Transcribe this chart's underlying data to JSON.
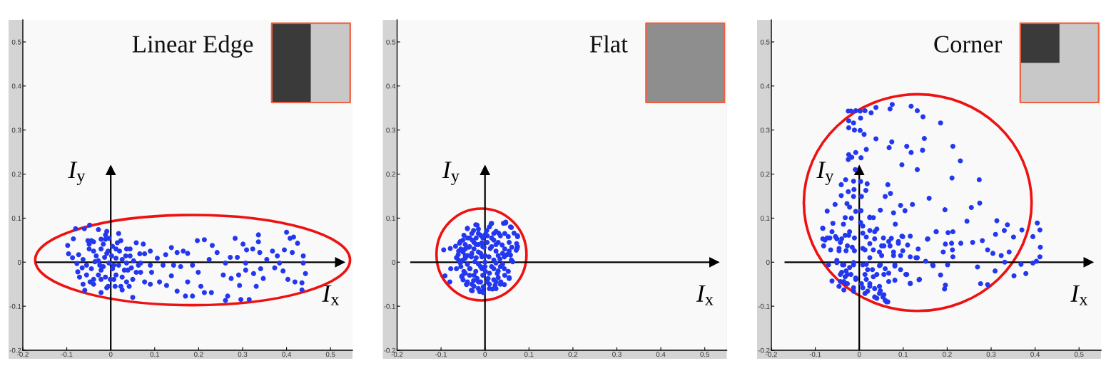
{
  "chart_data": [
    {
      "type": "scatter",
      "title": "Linear Edge",
      "xlim": [
        -0.2,
        0.55
      ],
      "ylim": [
        -0.2,
        0.55
      ],
      "xticks": [
        -0.2,
        -0.1,
        0,
        0.1,
        0.2,
        0.3,
        0.4,
        0.5
      ],
      "yticks": [
        -0.2,
        -0.1,
        0,
        0.1,
        0.2,
        0.3,
        0.4,
        0.5
      ],
      "marker": "circle",
      "ref_lines": [
        {
          "axis": "y",
          "value": 0,
          "label": "I$_{x}$",
          "color": "#000000"
        },
        {
          "axis": "x",
          "value": 0,
          "label": "I$_{y}$",
          "color": "#000000"
        }
      ],
      "series": [
        {
          "color": "#2337f0",
          "x": [
            -0.098,
            -0.085,
            -0.08,
            -0.096,
            -0.087,
            -0.077,
            -0.075,
            -0.071,
            -0.063,
            -0.059,
            -0.06,
            -0.048,
            -0.052,
            -0.044,
            -0.049,
            -0.055,
            -0.044,
            -0.039,
            -0.047,
            -0.028,
            -0.009,
            -0.022,
            -0.014,
            -0.028,
            -0.022,
            -0.012,
            -0.022,
            -0.009,
            -0.004,
            0.004,
            0.002,
            0.007,
            0.012,
            0.01,
            0.018,
            0.023,
            0.02,
            0.026,
            0.031,
            0.026,
            0.036,
            0.044,
            0.05,
            0.05,
            0.058,
            0.063,
            0.074,
            0.077,
            0.068,
            0.077,
            0.09,
            0.09,
            0.093,
            0.09,
            0.106,
            0.111,
            0.119,
            0.125,
            0.127,
            0.138,
            0.138,
            0.143,
            0.151,
            0.151,
            0.159,
            0.165,
            0.17,
            0.175,
            0.175,
            0.186,
            0.186,
            0.197,
            0.199,
            0.205,
            0.213,
            0.213,
            0.224,
            0.229,
            0.231,
            0.242,
            0.256,
            0.261,
            0.266,
            0.272,
            0.274,
            0.283,
            0.288,
            0.291,
            0.293,
            0.301,
            0.307,
            0.307,
            0.309,
            0.315,
            0.323,
            0.325,
            0.331,
            0.336,
            0.336,
            0.339,
            0.341,
            0.347,
            0.355,
            0.368,
            0.373,
            0.379,
            0.384,
            0.392,
            0.395,
            0.4,
            0.403,
            0.408,
            0.413,
            0.416,
            0.419,
            0.425,
            0.435,
            0.438,
            0.438,
            0.443,
            0.435,
            0.261,
            0.296,
            -0.039,
            -0.036,
            -0.017,
            -0.006,
            0.012,
            0.036,
            0.047,
            -0.028,
            -0.001,
            0.042,
            0.015,
            -0.012,
            -0.049,
            -0.039,
            -0.033,
            -0.025,
            -0.017,
            -0.009,
            -0.004,
            0.004,
            0.012,
            0.018,
            0.026,
            0.034,
            0.039,
            0.044,
            0.052,
            0.058,
            0.066,
            0.068,
            -0.022,
            -0.006,
            0.007,
            -0.055,
            -0.065,
            -0.063,
            -0.073,
            -0.039,
            0.023,
            0.036,
            -0.012,
            -0.022
          ],
          "values": [
            0.038,
            0.053,
            0.076,
            0.019,
            0.01,
            -0.003,
            -0.022,
            -0.034,
            -0.05,
            -0.064,
            0.076,
            0.084,
            0.049,
            0.049,
            0.03,
            -0.007,
            -0.015,
            -0.039,
            -0.045,
            0.074,
            0.07,
            0.03,
            0.011,
            0.003,
            -0.018,
            -0.034,
            -0.069,
            -0.058,
            0.054,
            0.036,
            0.014,
            -0.007,
            -0.029,
            -0.055,
            0.065,
            0.049,
            0.025,
            0.006,
            -0.018,
            -0.063,
            0.03,
            0.014,
            -0.039,
            -0.08,
            0.044,
            -0.007,
            0.041,
            0.019,
            -0.023,
            -0.045,
            0.025,
            -0.007,
            -0.023,
            -0.05,
            0.009,
            -0.045,
            -0.007,
            0.017,
            -0.053,
            0.033,
            -0.031,
            -0.007,
            0.022,
            -0.066,
            -0.01,
            0.025,
            -0.077,
            0.02,
            -0.045,
            -0.007,
            -0.077,
            0.049,
            -0.023,
            -0.055,
            0.051,
            -0.069,
            0.006,
            -0.069,
            0.038,
            0.022,
            -0.029,
            -0.002,
            -0.077,
            0.011,
            -0.037,
            0.054,
            0.011,
            -0.029,
            -0.053,
            0.041,
            -0.002,
            -0.018,
            0.028,
            -0.085,
            0.03,
            -0.026,
            -0.055,
            0.062,
            0.046,
            0.022,
            -0.015,
            -0.037,
            0.006,
            0.025,
            -0.013,
            0.014,
            -0.002,
            -0.02,
            0.028,
            0.068,
            -0.039,
            0.054,
            0.022,
            0.057,
            -0.045,
            0.043,
            -0.063,
            0.014,
            -0.002,
            -0.026,
            -0.047,
            -0.087,
            -0.085,
            0.046,
            0.001,
            -0.01,
            0.025,
            0.009,
            -0.002,
            -0.013,
            -0.029,
            -0.039,
            -0.055,
            0.044,
            0.052,
            0.041,
            0.025,
            0.014,
            -0.007,
            0.041,
            0.02,
            -0.002,
            -0.015,
            0.03,
            -0.007,
            -0.034,
            0.014,
            -0.018,
            0.03,
            0.003,
            -0.023,
            0.019,
            -0.002,
            -0.039,
            -0.055,
            -0.039,
            -0.029,
            -0.013,
            0.006,
            0.017,
            -0.05,
            -0.055,
            -0.045,
            0.062,
            0.052
          ]
        }
      ]
    },
    {
      "type": "scatter",
      "title": "Flat",
      "xlim": [
        -0.2,
        0.55
      ],
      "ylim": [
        -0.2,
        0.55
      ],
      "xticks": [
        -0.2,
        -0.1,
        0,
        0.1,
        0.2,
        0.3,
        0.4,
        0.5
      ],
      "yticks": [
        -0.2,
        -0.1,
        0,
        0.1,
        0.2,
        0.3,
        0.4,
        0.5
      ],
      "marker": "circle",
      "ref_lines": [
        {
          "axis": "y",
          "value": 0,
          "label": "I$_{x}$",
          "color": "#000000"
        },
        {
          "axis": "x",
          "value": 0,
          "label": "I$_{y}$",
          "color": "#000000"
        }
      ],
      "series": [
        {
          "color": "#2337f0",
          "x": [
            -0.094,
            -0.079,
            -0.091,
            -0.08,
            -0.078,
            -0.065,
            -0.067,
            -0.061,
            -0.056,
            -0.056,
            -0.052,
            -0.048,
            -0.045,
            -0.042,
            -0.04,
            -0.037,
            -0.034,
            -0.031,
            -0.029,
            -0.026,
            -0.023,
            -0.021,
            -0.018,
            -0.015,
            -0.012,
            -0.01,
            -0.007,
            -0.004,
            -0.002,
            0.004,
            0.007,
            0.009,
            0.015,
            0.015,
            0.017,
            0.02,
            0.025,
            0.028,
            0.031,
            0.034,
            0.036,
            0.039,
            0.042,
            0.044,
            0.047,
            0.05,
            0.053,
            0.055,
            0.058,
            0.061,
            0.063,
            0.066,
            0.072,
            0.074,
            0.073,
            0.053,
            0.023,
            -0.031,
            -0.021,
            0.001,
            -0.007,
            0.012,
            -0.026,
            -0.048,
            -0.004,
            -0.015,
            0.025,
            0.044,
            -0.05,
            0.001,
            -0.007,
            -0.035,
            -0.02,
            -0.01,
            0.005,
            0.02,
            -0.04,
            -0.025,
            -0.01,
            0.01,
            0.03,
            0.04,
            0.03,
            -0.045,
            -0.06,
            -0.03,
            0,
            -0.015,
            0.01,
            0.045,
            0.055,
            -0.035,
            0.02,
            0.035,
            -0.05,
            -0.005,
            -0.058,
            -0.04,
            -0.018,
            0.014,
            0.047,
            0.06,
            0.074,
            0.074,
            0.071,
            0.058,
            0.055,
            0.044,
            0.025,
            -0.005,
            -0.029,
            -0.042,
            -0.053,
            -0.05,
            -0.045,
            -0.04,
            -0.03,
            -0.025,
            -0.02,
            -0.015,
            -0.005,
            0.005,
            0.015,
            0.025,
            0.035,
            -0.055,
            -0.045,
            -0.035,
            -0.025,
            -0.015,
            -0.005,
            0.015,
            0.025,
            0.045,
            0.055,
            -0.05,
            -0.04,
            -0.02,
            0,
            0.02,
            0.03,
            0.04,
            -0.055,
            -0.045,
            -0.035,
            -0.025,
            -0.01,
            0,
            0.01,
            0.02,
            0.03,
            0.045,
            -0.04,
            -0.03,
            -0.015,
            -0.015,
            0.005,
            0.01,
            0.025,
            0.035,
            -0.06,
            -0.065,
            0.06
          ],
          "values": [
            0.028,
            0.031,
            -0.031,
            -0.045,
            -0.015,
            -0.015,
            0.036,
            0.017,
            0.047,
            -0.002,
            -0.031,
            0.061,
            0.009,
            -0.05,
            0.077,
            0.034,
            -0.015,
            -0.064,
            0.05,
            0.072,
            0.001,
            0.085,
            -0.037,
            0.023,
            -0.067,
            0.061,
            -0.015,
            -0.056,
            0.034,
            0.072,
            -0.037,
            0.012,
            0.088,
            -0.01,
            -0.061,
            0.05,
            0.025,
            -0.026,
            0.066,
            0.007,
            -0.045,
            0.039,
            0.088,
            -0.015,
            0.091,
            0.017,
            0.058,
            -0.037,
            0.08,
            0.034,
            0.001,
            0.066,
            0.042,
            0.058,
            0.031,
            -0.021,
            -0.053,
            0.012,
            -0.021,
            -0.021,
            0.044,
            0.031,
            -0.042,
            -0.021,
            -0.069,
            -0.004,
            -0.002,
            0.012,
            0.023,
            0.063,
            0.012,
            0.055,
            0.04,
            0.02,
            0.045,
            0.065,
            -0.005,
            -0.055,
            -0.045,
            -0.05,
            -0.035,
            0.02,
            0.045,
            0.03,
            0.005,
            0.02,
            0,
            0.075,
            0.08,
            0.065,
            0.045,
            -0.03,
            -0.04,
            -0.01,
            -0.04,
            -0.03,
            0.043,
            0.076,
            0.084,
            0.087,
            0.089,
            0.079,
            0.06,
            0.035,
            0.027,
            0.016,
            -0.035,
            -0.051,
            -0.06,
            -0.065,
            -0.065,
            -0.051,
            -0.033,
            0.05,
            0.04,
            0.055,
            0.065,
            0.045,
            0.055,
            0.065,
            0.055,
            0.06,
            0.055,
            0.07,
            0.06,
            0.03,
            0.015,
            0.035,
            0.03,
            0.04,
            0.035,
            0.035,
            0.04,
            0.03,
            0.025,
            0.005,
            0.015,
            0.01,
            0.015,
            0.005,
            0.015,
            -0.005,
            -0.01,
            -0.025,
            -0.015,
            -0.03,
            -0.01,
            -0.01,
            -0.025,
            -0.015,
            -0.02,
            -0.03,
            -0.045,
            -0.05,
            -0.045,
            -0.06,
            -0.045,
            -0.06,
            -0.045,
            -0.05,
            0.025,
            0.01,
            0.005
          ]
        }
      ]
    },
    {
      "type": "scatter",
      "title": "Corner",
      "xlim": [
        -0.2,
        0.55
      ],
      "ylim": [
        -0.2,
        0.55
      ],
      "xticks": [
        -0.2,
        -0.1,
        0,
        0.1,
        0.2,
        0.3,
        0.4,
        0.5
      ],
      "yticks": [
        -0.2,
        -0.1,
        0,
        0.1,
        0.2,
        0.3,
        0.4,
        0.5
      ],
      "marker": "circle",
      "ref_lines": [
        {
          "axis": "y",
          "value": 0,
          "label": "I$_{x}$",
          "color": "#000000"
        },
        {
          "axis": "x",
          "value": 0,
          "label": "I$_{y}$",
          "color": "#000000"
        }
      ],
      "series": [
        {
          "color": "#2337f0",
          "x": [
            -0.025,
            -0.019,
            -0.008,
            0.002,
            0.013,
            0.027,
            0.038,
            0.07,
            0.075,
            0.118,
            0.132,
            0.145,
            0.185,
            -0.024,
            -0.013,
            0.003,
            -0.024,
            -0.011,
            0.002,
            0.011,
            0.038,
            0.068,
            0.074,
            0.108,
            0.118,
            0.144,
            0.148,
            0.213,
            0.23,
            0.097,
            0.132,
            0.016,
            -0.008,
            -0.024,
            -0.025,
            -0.017,
            0.004,
            -0.009,
            0.211,
            0.273,
            -0.041,
            -0.031,
            -0.013,
            0.003,
            0.018,
            0.065,
            -0.025,
            -0.012,
            -0.041,
            -0.013,
            0.005,
            0.071,
            0.059,
            0.015,
            0.159,
            -0.055,
            -0.028,
            -0.022,
            -0.008,
            -0.073,
            0.004,
            0.048,
            0.094,
            0.104,
            0.121,
            0.078,
            0.195,
            0.255,
            0.274,
            -0.032,
            -0.018,
            0.024,
            0.032,
            0.082,
            0.245,
            0.313,
            0.337,
            0.405,
            -0.083,
            -0.06,
            -0.036,
            0.008,
            0.04,
            0.411,
            0.37,
            0.33,
            0.175,
            0.202,
            0.213,
            -0.083,
            -0.073,
            -0.054,
            -0.04,
            -0.024,
            -0.011,
            0.016,
            0.035,
            0.055,
            0.073,
            0.097,
            0.116,
            0.155,
            0.231,
            0.258,
            0.28,
            0.31,
            0.351,
            0.395,
            0.412,
            0.196,
            0.21,
            -0.081,
            -0.065,
            -0.046,
            -0.027,
            -0.011,
            0.008,
            0.032,
            0.051,
            0.07,
            0.089,
            0.099,
            0.134,
            0.191,
            0.212,
            0.292,
            0.304,
            0.323,
            0.341,
            0.411,
            0.213,
            0.129,
            0.151,
            0.078,
            0.051,
            0.024,
            -0.051,
            -0.07,
            -0.035,
            -0.013,
            0.016,
            0.046,
            0.081,
            0.094,
            0.168,
            0.201,
            0.331,
            0.368,
            0.395,
            0.403,
            0.309,
            0.269,
            0.185,
            0.106,
            0.136,
            0.352,
            0.379,
            -0.062,
            -0.043,
            -0.027,
            -0.008,
            0.013,
            0.032,
            0.056,
            0.067,
            0.116,
            0.196,
            0.276,
            0.292,
            0.194,
            -0.046,
            -0.03,
            -0.013,
            0.008,
            0.024,
            0.046,
            0.056,
            0.013,
            0.035,
            0.062,
            0.048,
            -0.035,
            -0.051,
            -0.038,
            -0.03,
            -0.022,
            -0.04,
            -0.032,
            -0.019,
            -0.008,
            -0.043,
            -0.027,
            -0.013,
            -0.035,
            0.005,
            0.016,
            0.024,
            0.019,
            0.035,
            0.046,
            0.054,
            0.059,
            0.065,
            0.04,
            0.03,
            0.04,
            0.048,
            0.059,
            0.067,
            0.081,
            0.081,
            0.108,
            0.116,
            0.137,
            0.167,
            -0.013,
            0.008,
            0.019,
            -0.078,
            -0.067,
            -0.083,
            -0.062,
            -0.051,
            -0.043,
            -0.032,
            -0.022,
            -0.046,
            -0.03,
            -0.016,
            0.013,
            0.024,
            0.035,
            0.046,
            0.056,
            0.067,
            0.089,
            0.099,
            0.11,
            0.078,
            0.094,
            0.116,
            0.132,
            0.156,
            0.175,
            0.008,
            0.024,
            0.003,
            0.024
          ],
          "values": [
            0.343,
            0.343,
            0.344,
            0.343,
            0.344,
            0.339,
            0.351,
            0.348,
            0.358,
            0.354,
            0.344,
            0.33,
            0.316,
            0.321,
            0.316,
            0.327,
            0.305,
            0.3,
            0.299,
            0.29,
            0.28,
            0.26,
            0.273,
            0.263,
            0.249,
            0.254,
            0.281,
            0.263,
            0.23,
            0.221,
            0.21,
            0.256,
            0.249,
            0.244,
            0.233,
            0.238,
            0.237,
            0.21,
            0.191,
            0.187,
            0.176,
            0.187,
            0.184,
            0.183,
            0.178,
            0.176,
            0.16,
            0.165,
            0.151,
            0.149,
            0.149,
            0.156,
            0.149,
            0.163,
            0.145,
            0.131,
            0.133,
            0.125,
            0.115,
            0.116,
            0.117,
            0.118,
            0.129,
            0.117,
            0.131,
            0.112,
            0.119,
            0.124,
            0.134,
            0.101,
            0.1,
            0.102,
            0.101,
            0.086,
            0.093,
            0.094,
            0.085,
            0.089,
            0.077,
            0.088,
            0.086,
            0.082,
            0.075,
            0.073,
            0.073,
            0.072,
            0.069,
            0.067,
            0.069,
            0.053,
            0.055,
            0.058,
            0.053,
            0.061,
            0.055,
            0.057,
            0.069,
            0.055,
            0.054,
            0.059,
            0.059,
            0.052,
            0.043,
            0.045,
            0.049,
            0.063,
            0.057,
            0.058,
            0.034,
            0.041,
            0.043,
            0.037,
            0.028,
            0.031,
            0.037,
            0.026,
            0.031,
            0.028,
            0.037,
            0.037,
            0.043,
            0.026,
            0.03,
            0.023,
            0.028,
            0.028,
            0.02,
            0.015,
            0.023,
            0.012,
            0.012,
            0.01,
            0.002,
            0.015,
            0.015,
            0.01,
            0.004,
            -0.006,
            -0.006,
            -0.006,
            -0.005,
            -0.008,
            -0.006,
            -0.017,
            -0.008,
            -0.006,
            0,
            -0.005,
            -0.002,
            0.002,
            -0.02,
            -0.011,
            -0.029,
            -0.028,
            -0.04,
            -0.031,
            -0.026,
            -0.043,
            -0.028,
            -0.028,
            -0.036,
            -0.028,
            -0.033,
            -0.028,
            -0.044,
            -0.048,
            -0.052,
            -0.049,
            -0.051,
            -0.061,
            -0.055,
            -0.049,
            -0.066,
            -0.058,
            -0.049,
            -0.055,
            -0.074,
            -0.071,
            -0.079,
            -0.09,
            -0.065,
            -0.044,
            -0.001,
            -0.006,
            -0.02,
            -0.012,
            -0.023,
            -0.033,
            -0.028,
            -0.039,
            -0.044,
            -0.049,
            -0.058,
            -0.063,
            -0.049,
            -0.039,
            -0.055,
            -0.066,
            -0.06,
            -0.071,
            -0.079,
            -0.087,
            -0.09,
            -0.082,
            -0.017,
            -0.028,
            -0.006,
            -0.015,
            -0.025,
            -0.009,
            -0.041,
            -0.028,
            -0.049,
            -0.039,
            -0.006,
            -0.001,
            -0.006,
            -0.017,
            0.05,
            0.055,
            0.077,
            0.069,
            0.053,
            0.045,
            0.061,
            0.069,
            0.026,
            0.026,
            0.034,
            0.028,
            0.042,
            0.053,
            0.023,
            0.037,
            0.047,
            0.047,
            0.058,
            0.039,
            0.023,
            0.015,
            0.012,
            0.01,
            0.053,
            0.069,
            0.066,
            0.072,
            0.09,
            0.101
          ]
        }
      ]
    }
  ]
}
